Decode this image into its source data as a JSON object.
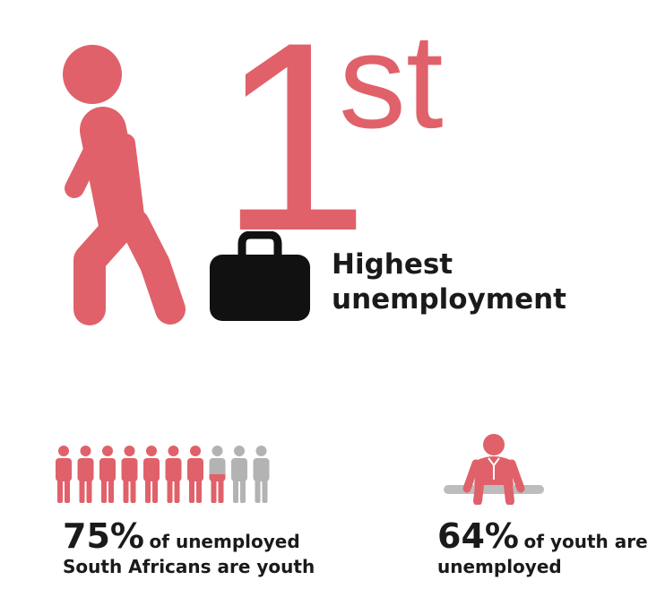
{
  "colors": {
    "accent": "#e0616a",
    "muted": "#b3b3b3",
    "dark": "#111111"
  },
  "hero": {
    "rank_number": "1",
    "rank_suffix": "st",
    "headline_line1": "Highest",
    "headline_line2": "unemployment"
  },
  "icons": {
    "walker": "walking-person-icon",
    "briefcase": "briefcase-icon",
    "people": "person-icon",
    "sitting": "sitting-person-icon"
  },
  "stat_youth_share": {
    "value": "75%",
    "text_line1": "of unemployed",
    "text_line2": "South Africans are youth",
    "people_total": 10,
    "people_highlighted": 7.5
  },
  "stat_youth_unemployed": {
    "value": "64%",
    "text_line1": "of youth are",
    "text_line2": "unemployed"
  }
}
